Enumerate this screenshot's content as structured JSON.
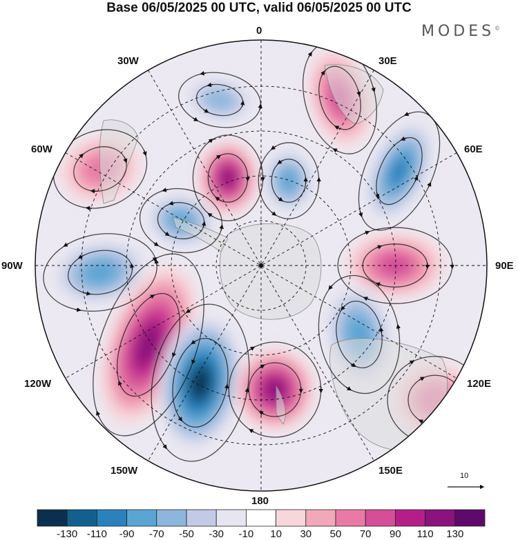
{
  "header": {
    "title": "Base 06/05/2025 00 UTC, valid 06/05/2025 00 UTC",
    "brand": "MODES",
    "brand_mark": "©"
  },
  "longitude_labels": {
    "l0": "0",
    "l30e": "30E",
    "l60e": "60E",
    "l90e": "90E",
    "l120e": "120E",
    "l150e": "150E",
    "l180": "180",
    "l150w": "150W",
    "l120w": "120W",
    "l90w": "90W",
    "l60w": "60W",
    "l30w": "30W"
  },
  "reference_vector": {
    "label": "10"
  },
  "colorbar": {
    "colors": [
      "#0b2f4e",
      "#13608f",
      "#2a82bd",
      "#5aa5d4",
      "#8db6dc",
      "#c2cae6",
      "#e6e5f0",
      "#ffffff",
      "#f8d7dc",
      "#f2a8b9",
      "#e87aa5",
      "#d44e98",
      "#b51e89",
      "#8a137c",
      "#5f0a6a"
    ],
    "ticks": [
      "-130",
      "-110",
      "-90",
      "-70",
      "-50",
      "-30",
      "-10",
      "10",
      "30",
      "50",
      "70",
      "90",
      "110",
      "130"
    ]
  },
  "anomalies": [
    {
      "name": "blue-30w",
      "value": -50
    },
    {
      "name": "pink-15e",
      "value": 80
    },
    {
      "name": "blue-50e",
      "value": -90
    },
    {
      "name": "pink-60w",
      "value": 50
    },
    {
      "name": "purple-near-0",
      "value": 115
    },
    {
      "name": "blue-near-0",
      "value": -80
    },
    {
      "name": "pink-90e",
      "value": 80
    },
    {
      "name": "blue-75w",
      "value": -70
    },
    {
      "name": "blue-90w",
      "value": -80
    },
    {
      "name": "purple-120w",
      "value": 115
    },
    {
      "name": "blue-150w",
      "value": -130
    },
    {
      "name": "purple-170e",
      "value": 125
    },
    {
      "name": "blue-130e",
      "value": -70
    },
    {
      "name": "pink-120e",
      "value": 50
    }
  ]
}
